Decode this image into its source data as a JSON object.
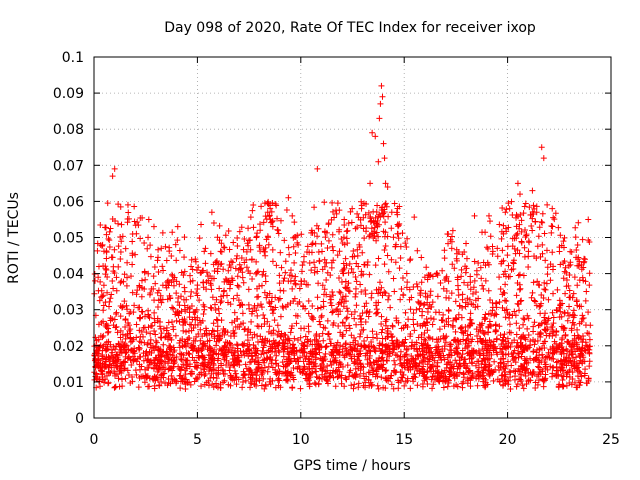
{
  "chart_data": {
    "type": "scatter",
    "title": "Day 098 of 2020, Rate Of TEC Index for receiver ixop",
    "xlabel": "GPS time / hours",
    "ylabel": "ROTI / TECUs",
    "xlim": [
      0,
      25
    ],
    "ylim": [
      0,
      0.1
    ],
    "x_ticks": [
      "0",
      "5",
      "10",
      "15",
      "20",
      "25"
    ],
    "y_ticks": [
      "0",
      "0.01",
      "0.02",
      "0.03",
      "0.04",
      "0.05",
      "0.06",
      "0.07",
      "0.08",
      "0.09",
      "0.1"
    ],
    "grid": true,
    "marker": "+",
    "point_color": "#ff0000",
    "series": [
      {
        "x": [
          0.05,
          0.2,
          0.45,
          0.9,
          1.0,
          1.6,
          2.65,
          2.9,
          4.05,
          4.9,
          5.7,
          5.8,
          7.0,
          7.7,
          8.4,
          9.4,
          10.3,
          10.8,
          12.1,
          13.35,
          13.45,
          13.6,
          13.75,
          13.8,
          13.85,
          13.9,
          13.95,
          14.0,
          14.05,
          14.1,
          14.2,
          14.4,
          14.7,
          15.3,
          17.3,
          18.4,
          19.1,
          19.5,
          20.1,
          20.5,
          20.6,
          21.2,
          21.65,
          21.75,
          22.7,
          23.1,
          23.9,
          0.6,
          1.3,
          3.3,
          6.5,
          8.9,
          11.5,
          16.0,
          17.9,
          19.8,
          22.2,
          23.4
        ],
        "y": [
          0.038,
          0.039,
          0.034,
          0.067,
          0.069,
          0.043,
          0.055,
          0.053,
          0.053,
          0.044,
          0.057,
          0.054,
          0.041,
          0.059,
          0.057,
          0.061,
          0.046,
          0.069,
          0.055,
          0.065,
          0.079,
          0.078,
          0.071,
          0.083,
          0.087,
          0.092,
          0.089,
          0.076,
          0.072,
          0.065,
          0.064,
          0.057,
          0.051,
          0.044,
          0.047,
          0.056,
          0.056,
          0.047,
          0.058,
          0.065,
          0.062,
          0.063,
          0.075,
          0.072,
          0.049,
          0.046,
          0.055,
          0.041,
          0.046,
          0.042,
          0.038,
          0.052,
          0.043,
          0.039,
          0.046,
          0.051,
          0.042,
          0.044
        ]
      }
    ]
  }
}
